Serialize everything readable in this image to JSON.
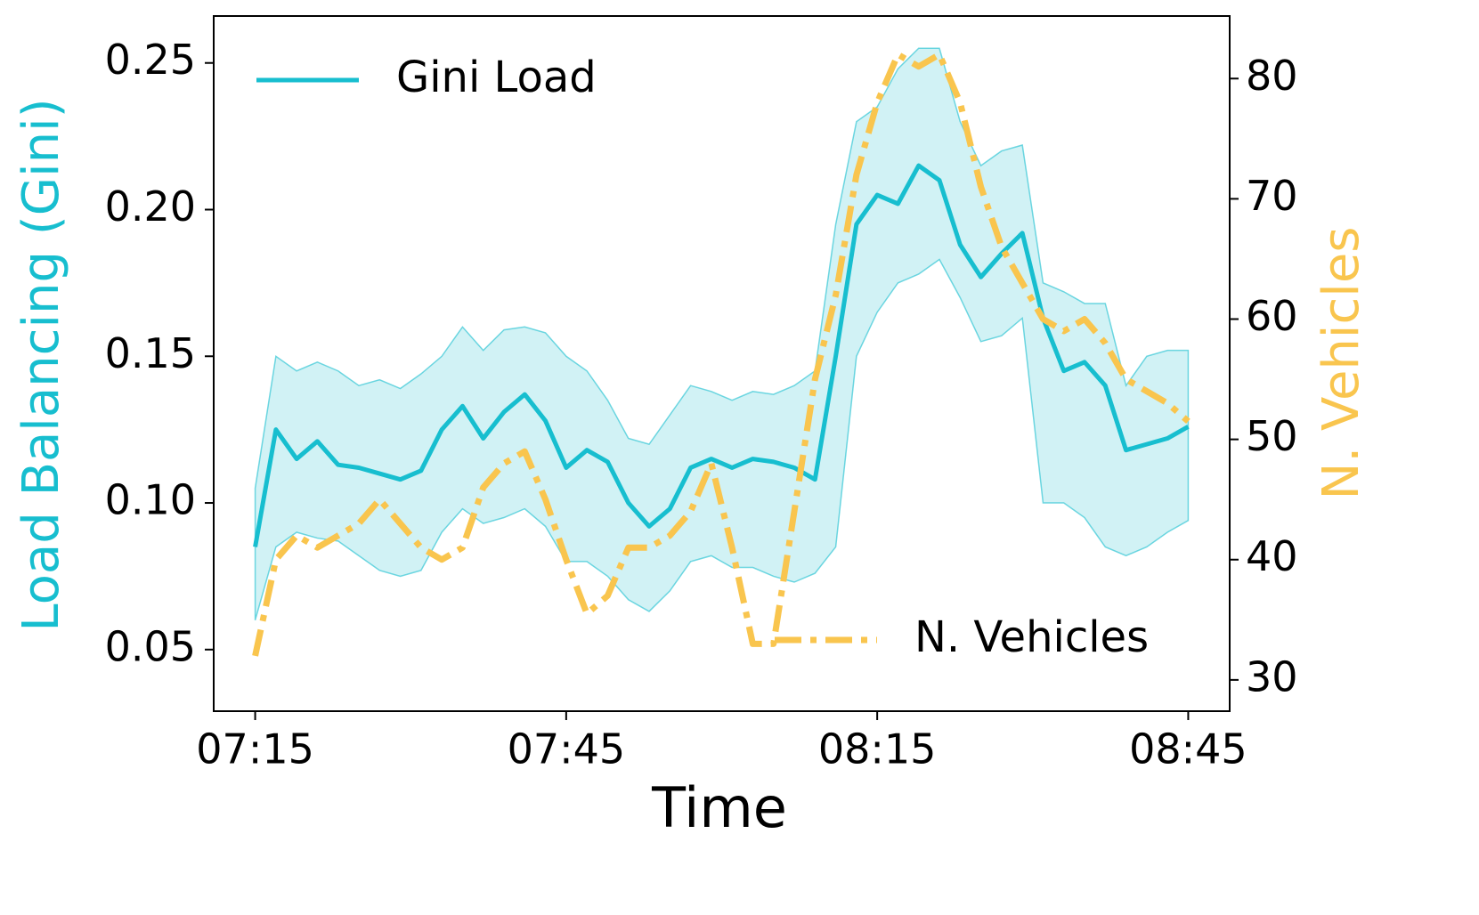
{
  "chart_data": {
    "type": "line",
    "xlabel": "Time",
    "ylabel": "Load Balancing (Gini)",
    "y2label": "N. Vehicles",
    "x": [
      "07:15",
      "07:17",
      "07:19",
      "07:21",
      "07:23",
      "07:25",
      "07:27",
      "07:29",
      "07:31",
      "07:33",
      "07:35",
      "07:37",
      "07:39",
      "07:41",
      "07:43",
      "07:45",
      "07:47",
      "07:49",
      "07:51",
      "07:53",
      "07:55",
      "07:57",
      "07:59",
      "08:01",
      "08:03",
      "08:05",
      "08:07",
      "08:09",
      "08:11",
      "08:13",
      "08:15",
      "08:17",
      "08:19",
      "08:21",
      "08:23",
      "08:25",
      "08:27",
      "08:29",
      "08:31",
      "08:33",
      "08:35",
      "08:37",
      "08:39",
      "08:41",
      "08:43",
      "08:45"
    ],
    "xlim": [
      "07:11",
      "08:49"
    ],
    "xticks": [
      "07:15",
      "07:45",
      "08:15",
      "08:45"
    ],
    "ylim": [
      0.029,
      0.266
    ],
    "yticks": [
      {
        "value": 0.05,
        "label": "0.05"
      },
      {
        "value": 0.1,
        "label": "0.10"
      },
      {
        "value": 0.15,
        "label": "0.15"
      },
      {
        "value": 0.2,
        "label": "0.20"
      },
      {
        "value": 0.25,
        "label": "0.25"
      }
    ],
    "y2lim": [
      27.4,
      85.2
    ],
    "y2ticks": [
      30,
      40,
      50,
      60,
      70,
      80
    ],
    "series": [
      {
        "name": "Gini Load",
        "color": "#17becf",
        "axis": "y",
        "legend": "upper left",
        "values": [
          0.085,
          0.125,
          0.115,
          0.121,
          0.113,
          0.112,
          0.11,
          0.108,
          0.111,
          0.125,
          0.133,
          0.122,
          0.131,
          0.137,
          0.128,
          0.112,
          0.118,
          0.114,
          0.1,
          0.092,
          0.098,
          0.112,
          0.115,
          0.112,
          0.115,
          0.114,
          0.112,
          0.108,
          0.15,
          0.195,
          0.205,
          0.202,
          0.215,
          0.21,
          0.188,
          0.177,
          0.185,
          0.192,
          0.163,
          0.145,
          0.148,
          0.14,
          0.118,
          0.12,
          0.122,
          0.126
        ],
        "upper": [
          0.105,
          0.15,
          0.145,
          0.148,
          0.145,
          0.14,
          0.142,
          0.139,
          0.144,
          0.15,
          0.16,
          0.152,
          0.159,
          0.16,
          0.158,
          0.15,
          0.145,
          0.135,
          0.122,
          0.12,
          0.13,
          0.14,
          0.138,
          0.135,
          0.138,
          0.137,
          0.14,
          0.145,
          0.195,
          0.23,
          0.235,
          0.248,
          0.255,
          0.255,
          0.23,
          0.215,
          0.22,
          0.222,
          0.175,
          0.172,
          0.168,
          0.168,
          0.14,
          0.15,
          0.152,
          0.152
        ],
        "lower": [
          0.06,
          0.085,
          0.09,
          0.088,
          0.087,
          0.082,
          0.077,
          0.075,
          0.077,
          0.09,
          0.098,
          0.093,
          0.095,
          0.098,
          0.092,
          0.08,
          0.08,
          0.075,
          0.067,
          0.063,
          0.07,
          0.08,
          0.082,
          0.078,
          0.078,
          0.075,
          0.073,
          0.076,
          0.085,
          0.15,
          0.165,
          0.175,
          0.178,
          0.183,
          0.17,
          0.155,
          0.157,
          0.163,
          0.1,
          0.1,
          0.095,
          0.085,
          0.082,
          0.085,
          0.09,
          0.094
        ]
      },
      {
        "name": "N. Vehicles",
        "color": "#f9c54e",
        "axis": "y2",
        "legend": "lower right",
        "values": [
          32,
          40,
          42,
          41,
          42,
          43,
          45,
          43,
          41,
          40,
          41,
          46,
          48,
          49,
          45,
          40,
          35.5,
          37,
          41,
          41,
          42,
          44,
          48,
          41,
          33,
          33,
          44,
          55,
          62,
          72,
          78,
          82,
          81,
          82,
          78,
          71,
          66,
          63,
          60,
          59,
          60,
          58,
          55,
          54,
          53,
          51.5
        ]
      }
    ]
  }
}
